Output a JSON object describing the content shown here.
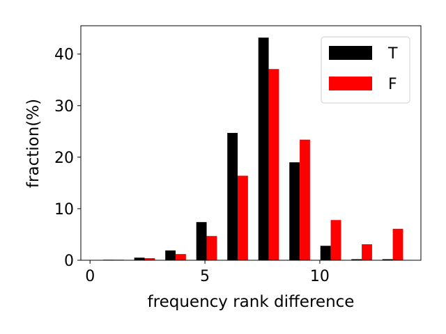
{
  "chart_data": {
    "type": "bar",
    "xlabel": "frequency rank difference",
    "ylabel": "fraction(%)",
    "xlim": [
      -0.4,
      14.4
    ],
    "ylim": [
      0,
      45.5
    ],
    "xticks": [
      0,
      5,
      10
    ],
    "yticks": [
      0,
      10,
      20,
      30,
      40
    ],
    "grid": false,
    "legend_position": "top-right",
    "bar_width": 0.45,
    "series": [
      {
        "name": "T",
        "color": "#000000",
        "x": [
          0.8,
          2.15,
          3.5,
          4.85,
          6.2,
          7.55,
          8.9,
          10.25,
          11.6,
          12.95
        ],
        "values": [
          0.1,
          0.5,
          1.9,
          7.4,
          24.7,
          43.2,
          19.0,
          2.8,
          0.2,
          0.2
        ]
      },
      {
        "name": "F",
        "color": "#ff0000",
        "x": [
          1.25,
          2.6,
          3.95,
          5.3,
          6.65,
          8.0,
          9.35,
          10.7,
          12.05,
          13.4
        ],
        "values": [
          0.1,
          0.4,
          1.2,
          4.7,
          16.4,
          37.1,
          23.4,
          7.8,
          3.1,
          6.1
        ]
      }
    ]
  }
}
